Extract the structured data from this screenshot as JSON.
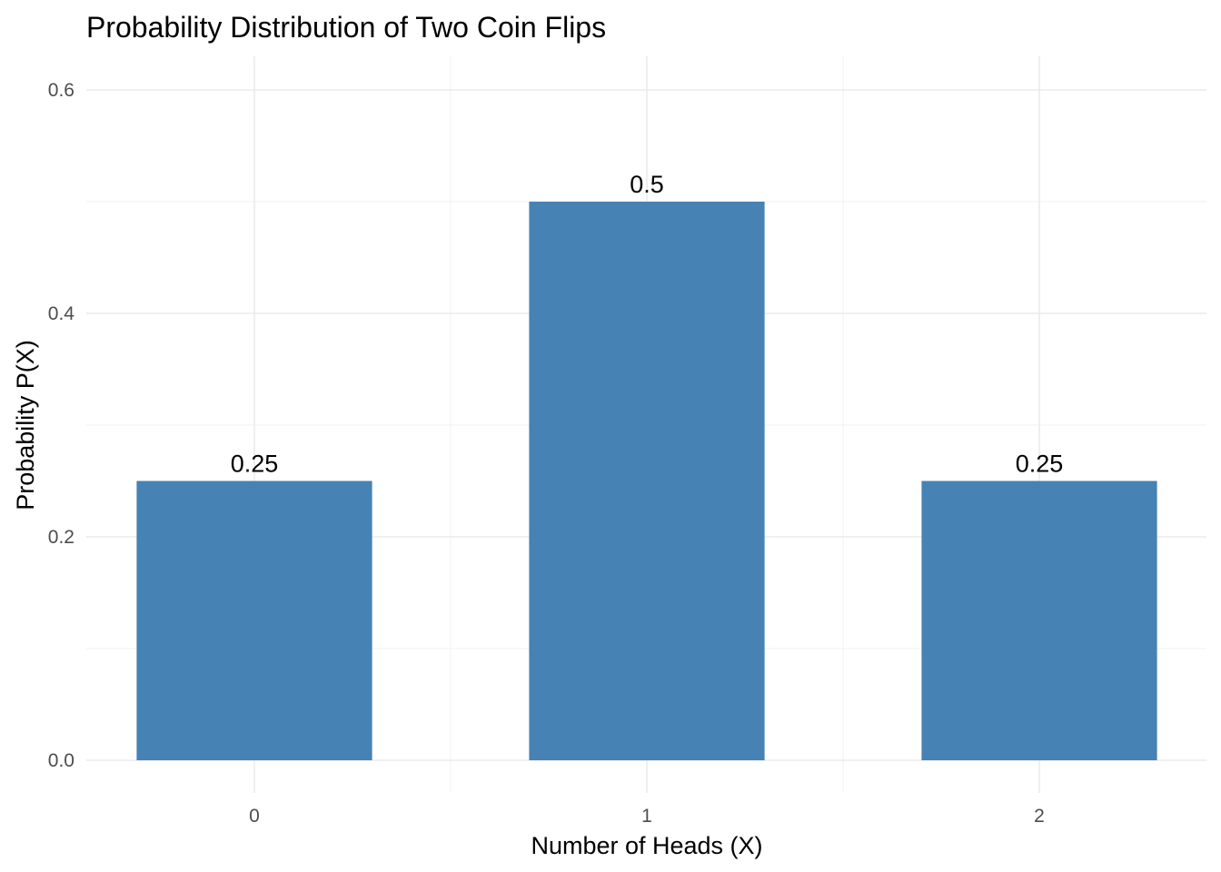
{
  "chart_data": {
    "type": "bar",
    "title": "Probability Distribution of Two Coin Flips",
    "xlabel": "Number of Heads (X)",
    "ylabel": "Probability P(X)",
    "categories": [
      "0",
      "1",
      "2"
    ],
    "values": [
      0.25,
      0.5,
      0.25
    ],
    "data_labels": [
      "0.25",
      "0.5",
      "0.25"
    ],
    "ylim": [
      0,
      0.6
    ],
    "y_ticks": [
      0.0,
      0.2,
      0.4,
      0.6
    ],
    "y_tick_labels": [
      "0.0",
      "0.2",
      "0.4",
      "0.6"
    ],
    "grid": true,
    "legend": "none",
    "colors": {
      "bar": "#4682B4"
    }
  }
}
